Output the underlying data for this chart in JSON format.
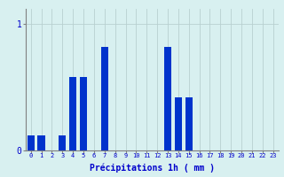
{
  "hours": [
    0,
    1,
    2,
    3,
    4,
    5,
    6,
    7,
    8,
    9,
    10,
    11,
    12,
    13,
    14,
    15,
    16,
    17,
    18,
    19,
    20,
    21,
    22,
    23
  ],
  "values": [
    0.12,
    0.12,
    0.0,
    0.12,
    0.58,
    0.58,
    0.0,
    0.82,
    0.0,
    0.0,
    0.0,
    0.0,
    0.0,
    0.82,
    0.42,
    0.42,
    0.0,
    0.0,
    0.0,
    0.0,
    0.0,
    0.0,
    0.0,
    0.0
  ],
  "bar_color": "#0033cc",
  "background_color": "#d8f0f0",
  "grid_color": "#b8d0d0",
  "xlabel": "Précipitations 1h ( mm )",
  "xlabel_color": "#0000cc",
  "tick_color": "#0000cc",
  "ytick_labels": [
    "0",
    "1"
  ],
  "ytick_vals": [
    0,
    1
  ],
  "ylim": [
    0,
    1.12
  ],
  "xlim": [
    -0.5,
    23.5
  ],
  "bar_width": 0.7
}
